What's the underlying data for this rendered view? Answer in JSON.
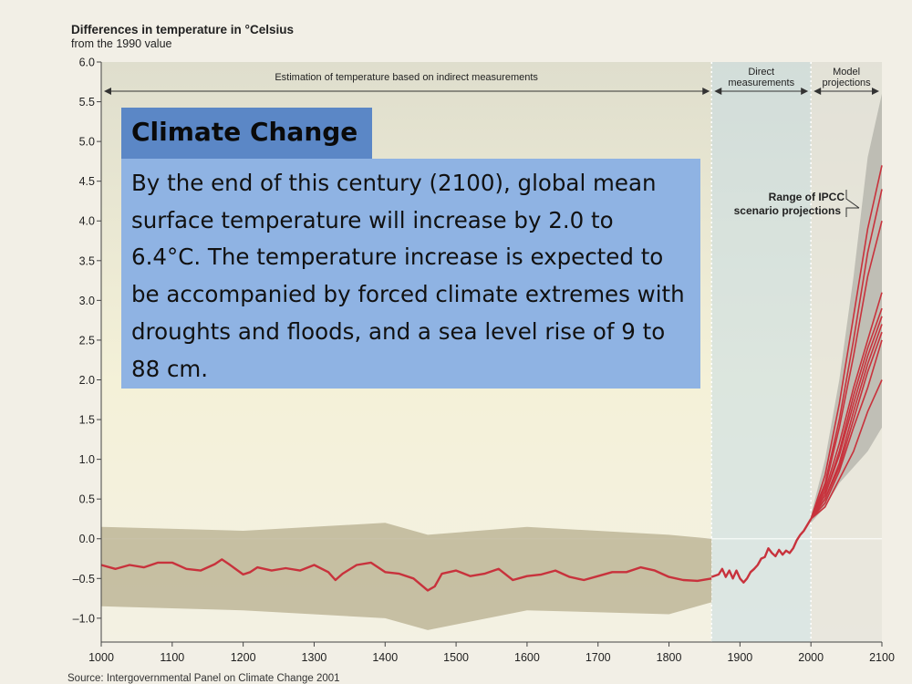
{
  "chart_data": {
    "type": "line",
    "title": "Differences in temperature in °Celsius",
    "subtitle": "from the 1990 value",
    "xlim": [
      1000,
      2100
    ],
    "ylim": [
      -1.3,
      6.0
    ],
    "x_ticks": [
      1000,
      1100,
      1200,
      1300,
      1400,
      1500,
      1600,
      1700,
      1800,
      1900,
      2000,
      2100
    ],
    "y_ticks": [
      {
        "value": 6.0,
        "label": "6.0"
      },
      {
        "value": 5.5,
        "label": "5.5"
      },
      {
        "value": 5.0,
        "label": "5.0"
      },
      {
        "value": 4.5,
        "label": "4.5"
      },
      {
        "value": 4.0,
        "label": "4.0"
      },
      {
        "value": 3.5,
        "label": "3.5"
      },
      {
        "value": 3.0,
        "label": "3.0"
      },
      {
        "value": 2.5,
        "label": "2.5"
      },
      {
        "value": 2.0,
        "label": "2.0"
      },
      {
        "value": 1.5,
        "label": "1.5"
      },
      {
        "value": 1.0,
        "label": "1.0"
      },
      {
        "value": 0.5,
        "label": "0.5"
      },
      {
        "value": 0.0,
        "label": "0.0"
      },
      {
        "value": -0.5,
        "label": "–0.5"
      },
      {
        "value": -1.0,
        "label": "–1.0"
      }
    ],
    "regions": [
      {
        "label": "Estimation of temperature based on indirect measurements",
        "from": 1000,
        "to": 1860
      },
      {
        "label_lines": [
          "Direct",
          "measurements"
        ],
        "from": 1860,
        "to": 2000
      },
      {
        "label_lines": [
          "Model",
          "projections"
        ],
        "from": 2000,
        "to": 2100
      }
    ],
    "reconstruction": {
      "x": [
        1000,
        1020,
        1040,
        1060,
        1080,
        1100,
        1120,
        1140,
        1160,
        1170,
        1180,
        1200,
        1210,
        1220,
        1240,
        1260,
        1280,
        1300,
        1320,
        1330,
        1340,
        1360,
        1380,
        1400,
        1420,
        1440,
        1460,
        1470,
        1480,
        1500,
        1520,
        1540,
        1560,
        1580,
        1600,
        1620,
        1640,
        1660,
        1680,
        1700,
        1720,
        1740,
        1760,
        1780,
        1800,
        1820,
        1840,
        1860
      ],
      "y": [
        -0.33,
        -0.38,
        -0.33,
        -0.36,
        -0.3,
        -0.3,
        -0.38,
        -0.4,
        -0.32,
        -0.26,
        -0.32,
        -0.45,
        -0.42,
        -0.36,
        -0.4,
        -0.37,
        -0.4,
        -0.33,
        -0.42,
        -0.52,
        -0.44,
        -0.33,
        -0.3,
        -0.42,
        -0.44,
        -0.5,
        -0.65,
        -0.6,
        -0.44,
        -0.4,
        -0.47,
        -0.44,
        -0.38,
        -0.52,
        -0.47,
        -0.45,
        -0.4,
        -0.48,
        -0.52,
        -0.47,
        -0.42,
        -0.42,
        -0.36,
        -0.4,
        -0.48,
        -0.52,
        -0.53,
        -0.5
      ]
    },
    "instrumental": {
      "x": [
        1860,
        1870,
        1875,
        1880,
        1885,
        1890,
        1895,
        1900,
        1905,
        1910,
        1915,
        1920,
        1925,
        1930,
        1935,
        1940,
        1945,
        1950,
        1955,
        1960,
        1965,
        1970,
        1975,
        1980,
        1985,
        1990,
        2000
      ],
      "y": [
        -0.48,
        -0.45,
        -0.38,
        -0.48,
        -0.4,
        -0.5,
        -0.4,
        -0.5,
        -0.55,
        -0.5,
        -0.42,
        -0.38,
        -0.33,
        -0.25,
        -0.23,
        -0.12,
        -0.18,
        -0.22,
        -0.14,
        -0.2,
        -0.15,
        -0.18,
        -0.12,
        -0.02,
        0.05,
        0.1,
        0.25
      ]
    },
    "uncertainty_band": {
      "x": [
        1000,
        1200,
        1400,
        1460,
        1600,
        1800,
        1860
      ],
      "upper": [
        0.15,
        0.1,
        0.2,
        0.05,
        0.15,
        0.05,
        0.0
      ],
      "lower": [
        -0.85,
        -0.9,
        -1.0,
        -1.15,
        -0.9,
        -0.95,
        -0.8
      ]
    },
    "projection_range": {
      "label_lines": [
        "Range of IPCC",
        "scenario projections"
      ],
      "x": [
        2000,
        2020,
        2040,
        2060,
        2080,
        2100
      ],
      "upper": [
        0.3,
        1.0,
        2.0,
        3.3,
        4.8,
        5.6
      ],
      "lower": [
        0.2,
        0.4,
        0.7,
        0.9,
        1.1,
        1.4
      ]
    },
    "projections": {
      "x": [
        2000,
        2020,
        2040,
        2060,
        2080,
        2100
      ],
      "series": [
        {
          "values": [
            0.25,
            0.8,
            1.7,
            2.8,
            3.9,
            4.7
          ]
        },
        {
          "values": [
            0.25,
            0.7,
            1.5,
            2.5,
            3.6,
            4.4
          ]
        },
        {
          "values": [
            0.25,
            0.65,
            1.4,
            2.3,
            3.3,
            4.0
          ]
        },
        {
          "values": [
            0.25,
            0.6,
            1.2,
            1.9,
            2.5,
            3.1
          ]
        },
        {
          "values": [
            0.25,
            0.55,
            1.1,
            1.8,
            2.4,
            2.9
          ]
        },
        {
          "values": [
            0.25,
            0.55,
            1.05,
            1.7,
            2.3,
            2.8
          ]
        },
        {
          "values": [
            0.25,
            0.5,
            0.95,
            1.6,
            2.2,
            2.7
          ]
        },
        {
          "values": [
            0.25,
            0.5,
            0.9,
            1.5,
            2.1,
            2.6
          ]
        },
        {
          "values": [
            0.25,
            0.45,
            0.85,
            1.4,
            1.9,
            2.5
          ]
        },
        {
          "values": [
            0.25,
            0.4,
            0.75,
            1.1,
            1.6,
            2.0
          ]
        }
      ]
    },
    "source": "Source: Intergovernmental Panel on Climate Change 2001"
  },
  "overlay": {
    "title": "Climate Change",
    "body": "By the end of this century (2100), global mean surface temperature will increase by 2.0 to 6.4°C.  The temperature increase is expected to be accompanied by forced climate extremes with droughts and floods, and a sea level rise of 9 to 88 cm."
  },
  "colors": {
    "line": "#c8323c",
    "band": "#b7ad8e",
    "plot_top": "#e3e2d4",
    "plot_bottom": "#f7f5e6",
    "title_box": "#5b87c6",
    "text_box": "#8fb3e3"
  }
}
